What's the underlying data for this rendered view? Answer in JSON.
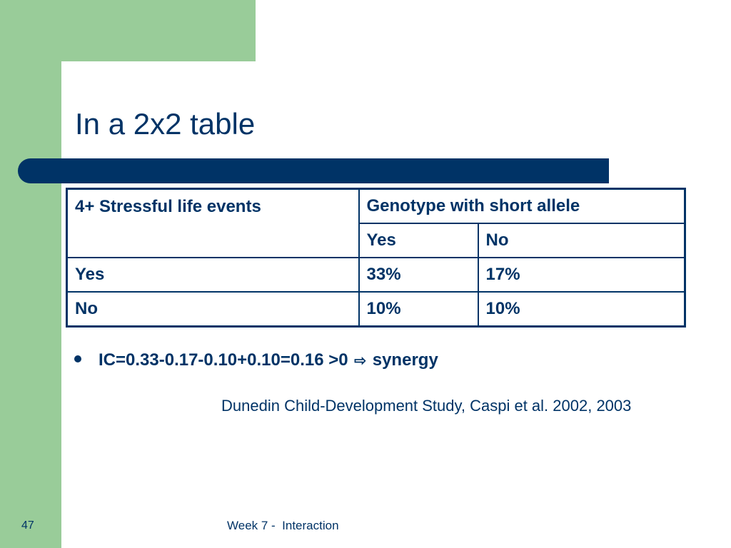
{
  "slide": {
    "title": "In a 2x2 table",
    "table": {
      "corner_header": "4+ Stressful life events",
      "group_header": "Genotype with short allele",
      "column_headers": [
        "Yes",
        "No"
      ],
      "rows": [
        {
          "label": "Yes",
          "cells": [
            "33%",
            "17%"
          ]
        },
        {
          "label": "No",
          "cells": [
            "10%",
            "10%"
          ]
        }
      ]
    },
    "bullet": {
      "prefix": "IC=0.33-0.17-0.10+0.10=0.16 >0",
      "arrow_icon": "hollow-right-arrow-icon",
      "arrow_glyph": "⇨",
      "suffix": "synergy"
    },
    "citation": "Dunedin Child-Development Study, Caspi et al. 2002, 2003",
    "footer": {
      "page_number": "47",
      "text": "Week 7 -  Interaction"
    },
    "colors": {
      "primary": "#003366",
      "accent_green": "#99cc99"
    }
  }
}
